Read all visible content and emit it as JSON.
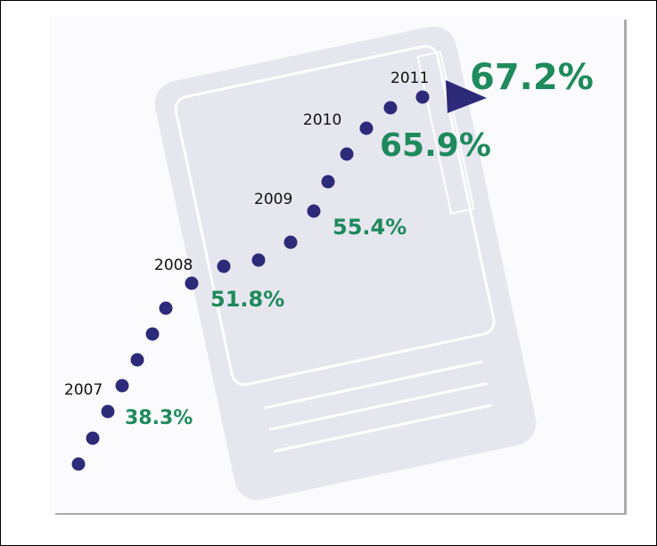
{
  "milestones": [
    {
      "year": "2007",
      "label": "38.3%"
    },
    {
      "year": "2008",
      "label": "51.8%"
    },
    {
      "year": "2009",
      "label": "55.4%"
    },
    {
      "year": "2010",
      "label": "65.9%"
    },
    {
      "year": "2011",
      "label": "67.2%"
    }
  ]
}
